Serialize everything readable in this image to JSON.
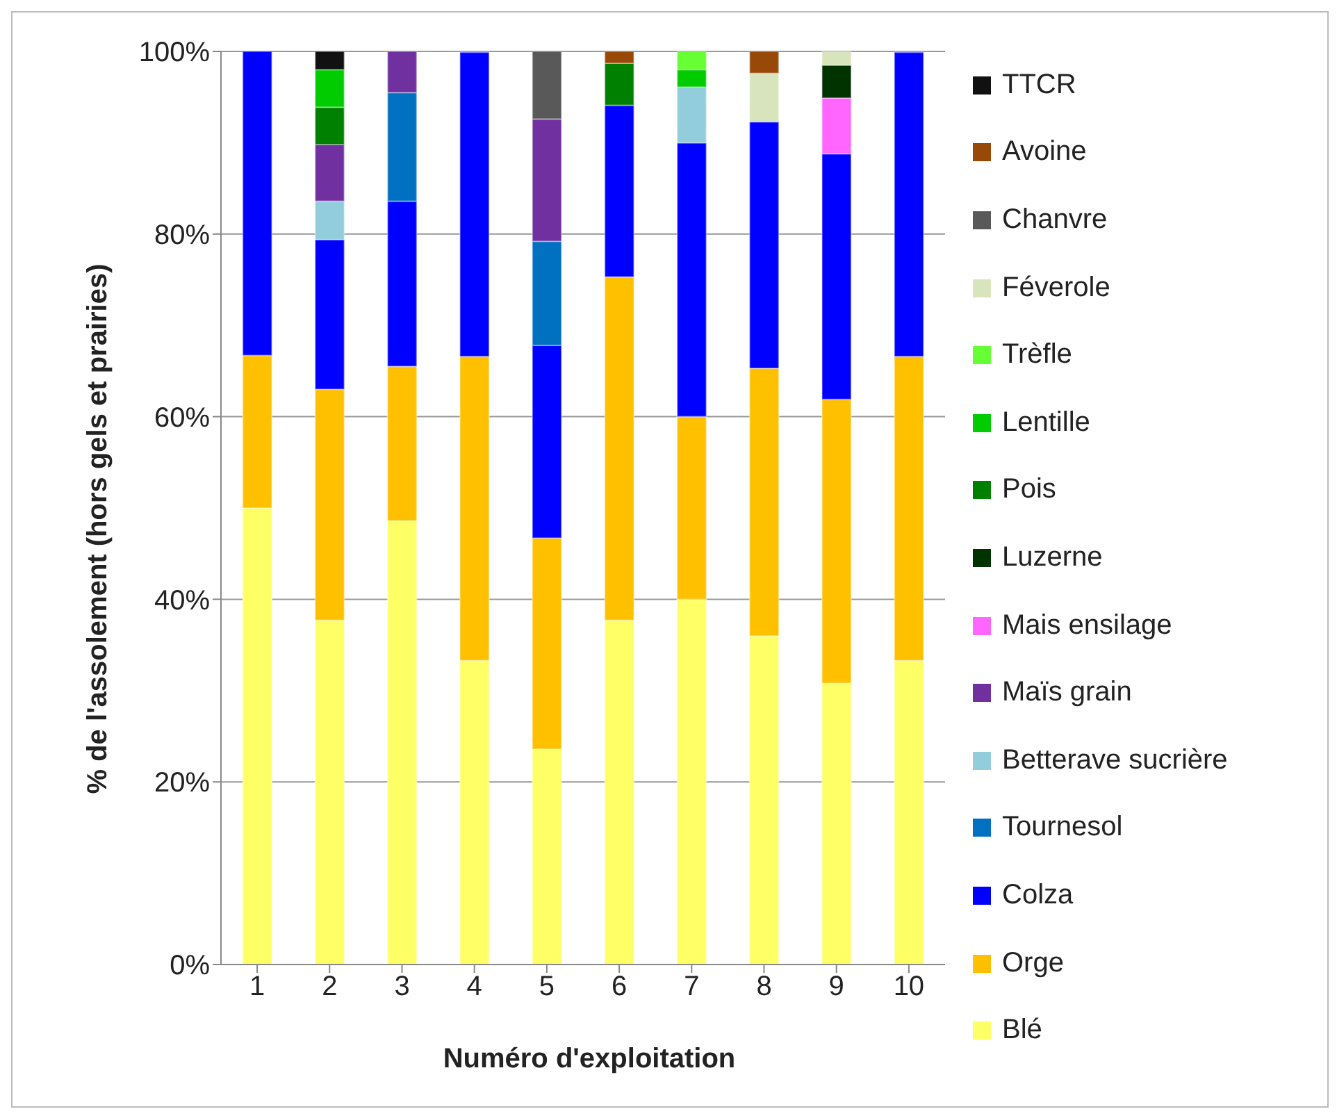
{
  "chart_data": {
    "type": "bar",
    "stacked": true,
    "xlabel": "Numéro d'exploitation",
    "ylabel": "% de l'assolement (hors gels et prairies)",
    "categories": [
      "1",
      "2",
      "3",
      "4",
      "5",
      "6",
      "7",
      "8",
      "9",
      "10"
    ],
    "ylim": [
      0,
      100
    ],
    "yticks": [
      {
        "value": 0,
        "label": "0%"
      },
      {
        "value": 20,
        "label": "20%"
      },
      {
        "value": 40,
        "label": "40%"
      },
      {
        "value": 60,
        "label": "60%"
      },
      {
        "value": 80,
        "label": "80%"
      },
      {
        "value": 100,
        "label": "100%"
      }
    ],
    "grid": "y",
    "legend": "right",
    "series": [
      {
        "name": "Blé",
        "color": "#ffff66",
        "values": [
          50,
          37.7,
          48.6,
          33.3,
          23.6,
          37.7,
          40,
          36,
          30.8,
          33.3
        ]
      },
      {
        "name": "Orge",
        "color": "#ffc000",
        "values": [
          16.7,
          25.3,
          16.9,
          33.3,
          23.1,
          37.6,
          20,
          29.3,
          31.1,
          33.3
        ]
      },
      {
        "name": "Colza",
        "color": "#0000ff",
        "values": [
          33.3,
          16.4,
          18.1,
          33.3,
          21.1,
          18.8,
          30,
          27,
          26.9,
          33.3
        ]
      },
      {
        "name": "Tournesol",
        "color": "#0070c0",
        "values": [
          0,
          0,
          11.9,
          0,
          11.4,
          0,
          0,
          0,
          0,
          0
        ]
      },
      {
        "name": "Betterave sucrière",
        "color": "#92cddc",
        "values": [
          0,
          4.2,
          0,
          0,
          0,
          0,
          6.1,
          0,
          0,
          0
        ]
      },
      {
        "name": "Maïs grain",
        "color": "#7030a0",
        "values": [
          0,
          6.2,
          4.5,
          0,
          13.4,
          0,
          0,
          0,
          0,
          0
        ]
      },
      {
        "name": "Mais ensilage",
        "color": "#ff66ff",
        "values": [
          0,
          0,
          0,
          0,
          0,
          0,
          0,
          0,
          6.1,
          0
        ]
      },
      {
        "name": "Luzerne",
        "color": "#003300",
        "values": [
          0,
          0,
          0,
          0,
          0,
          0,
          0,
          0,
          3.6,
          0
        ]
      },
      {
        "name": "Pois",
        "color": "#008000",
        "values": [
          0,
          4.1,
          0,
          0,
          0,
          4.6,
          0,
          0,
          0,
          0
        ]
      },
      {
        "name": "Lentille",
        "color": "#00cc00",
        "values": [
          0,
          4.1,
          0,
          0,
          0,
          0,
          1.9,
          0,
          0,
          0
        ]
      },
      {
        "name": "Trèfle",
        "color": "#66ff33",
        "values": [
          0,
          0,
          0,
          0,
          0,
          0,
          2,
          0,
          0,
          0
        ]
      },
      {
        "name": "Féverole",
        "color": "#d8e4bc",
        "values": [
          0,
          0,
          0,
          0,
          0,
          0,
          0,
          5.3,
          1.5,
          0
        ]
      },
      {
        "name": "Chanvre",
        "color": "#595959",
        "values": [
          0,
          0,
          0,
          0,
          7.4,
          0,
          0,
          0,
          0,
          0
        ]
      },
      {
        "name": "Avoine",
        "color": "#984807",
        "values": [
          0,
          0,
          0,
          0,
          0,
          1.3,
          0,
          2.4,
          0,
          0
        ]
      },
      {
        "name": "TTCR",
        "color": "#111111",
        "values": [
          0,
          2,
          0,
          0,
          0,
          0,
          0,
          0,
          0,
          0
        ]
      }
    ]
  }
}
